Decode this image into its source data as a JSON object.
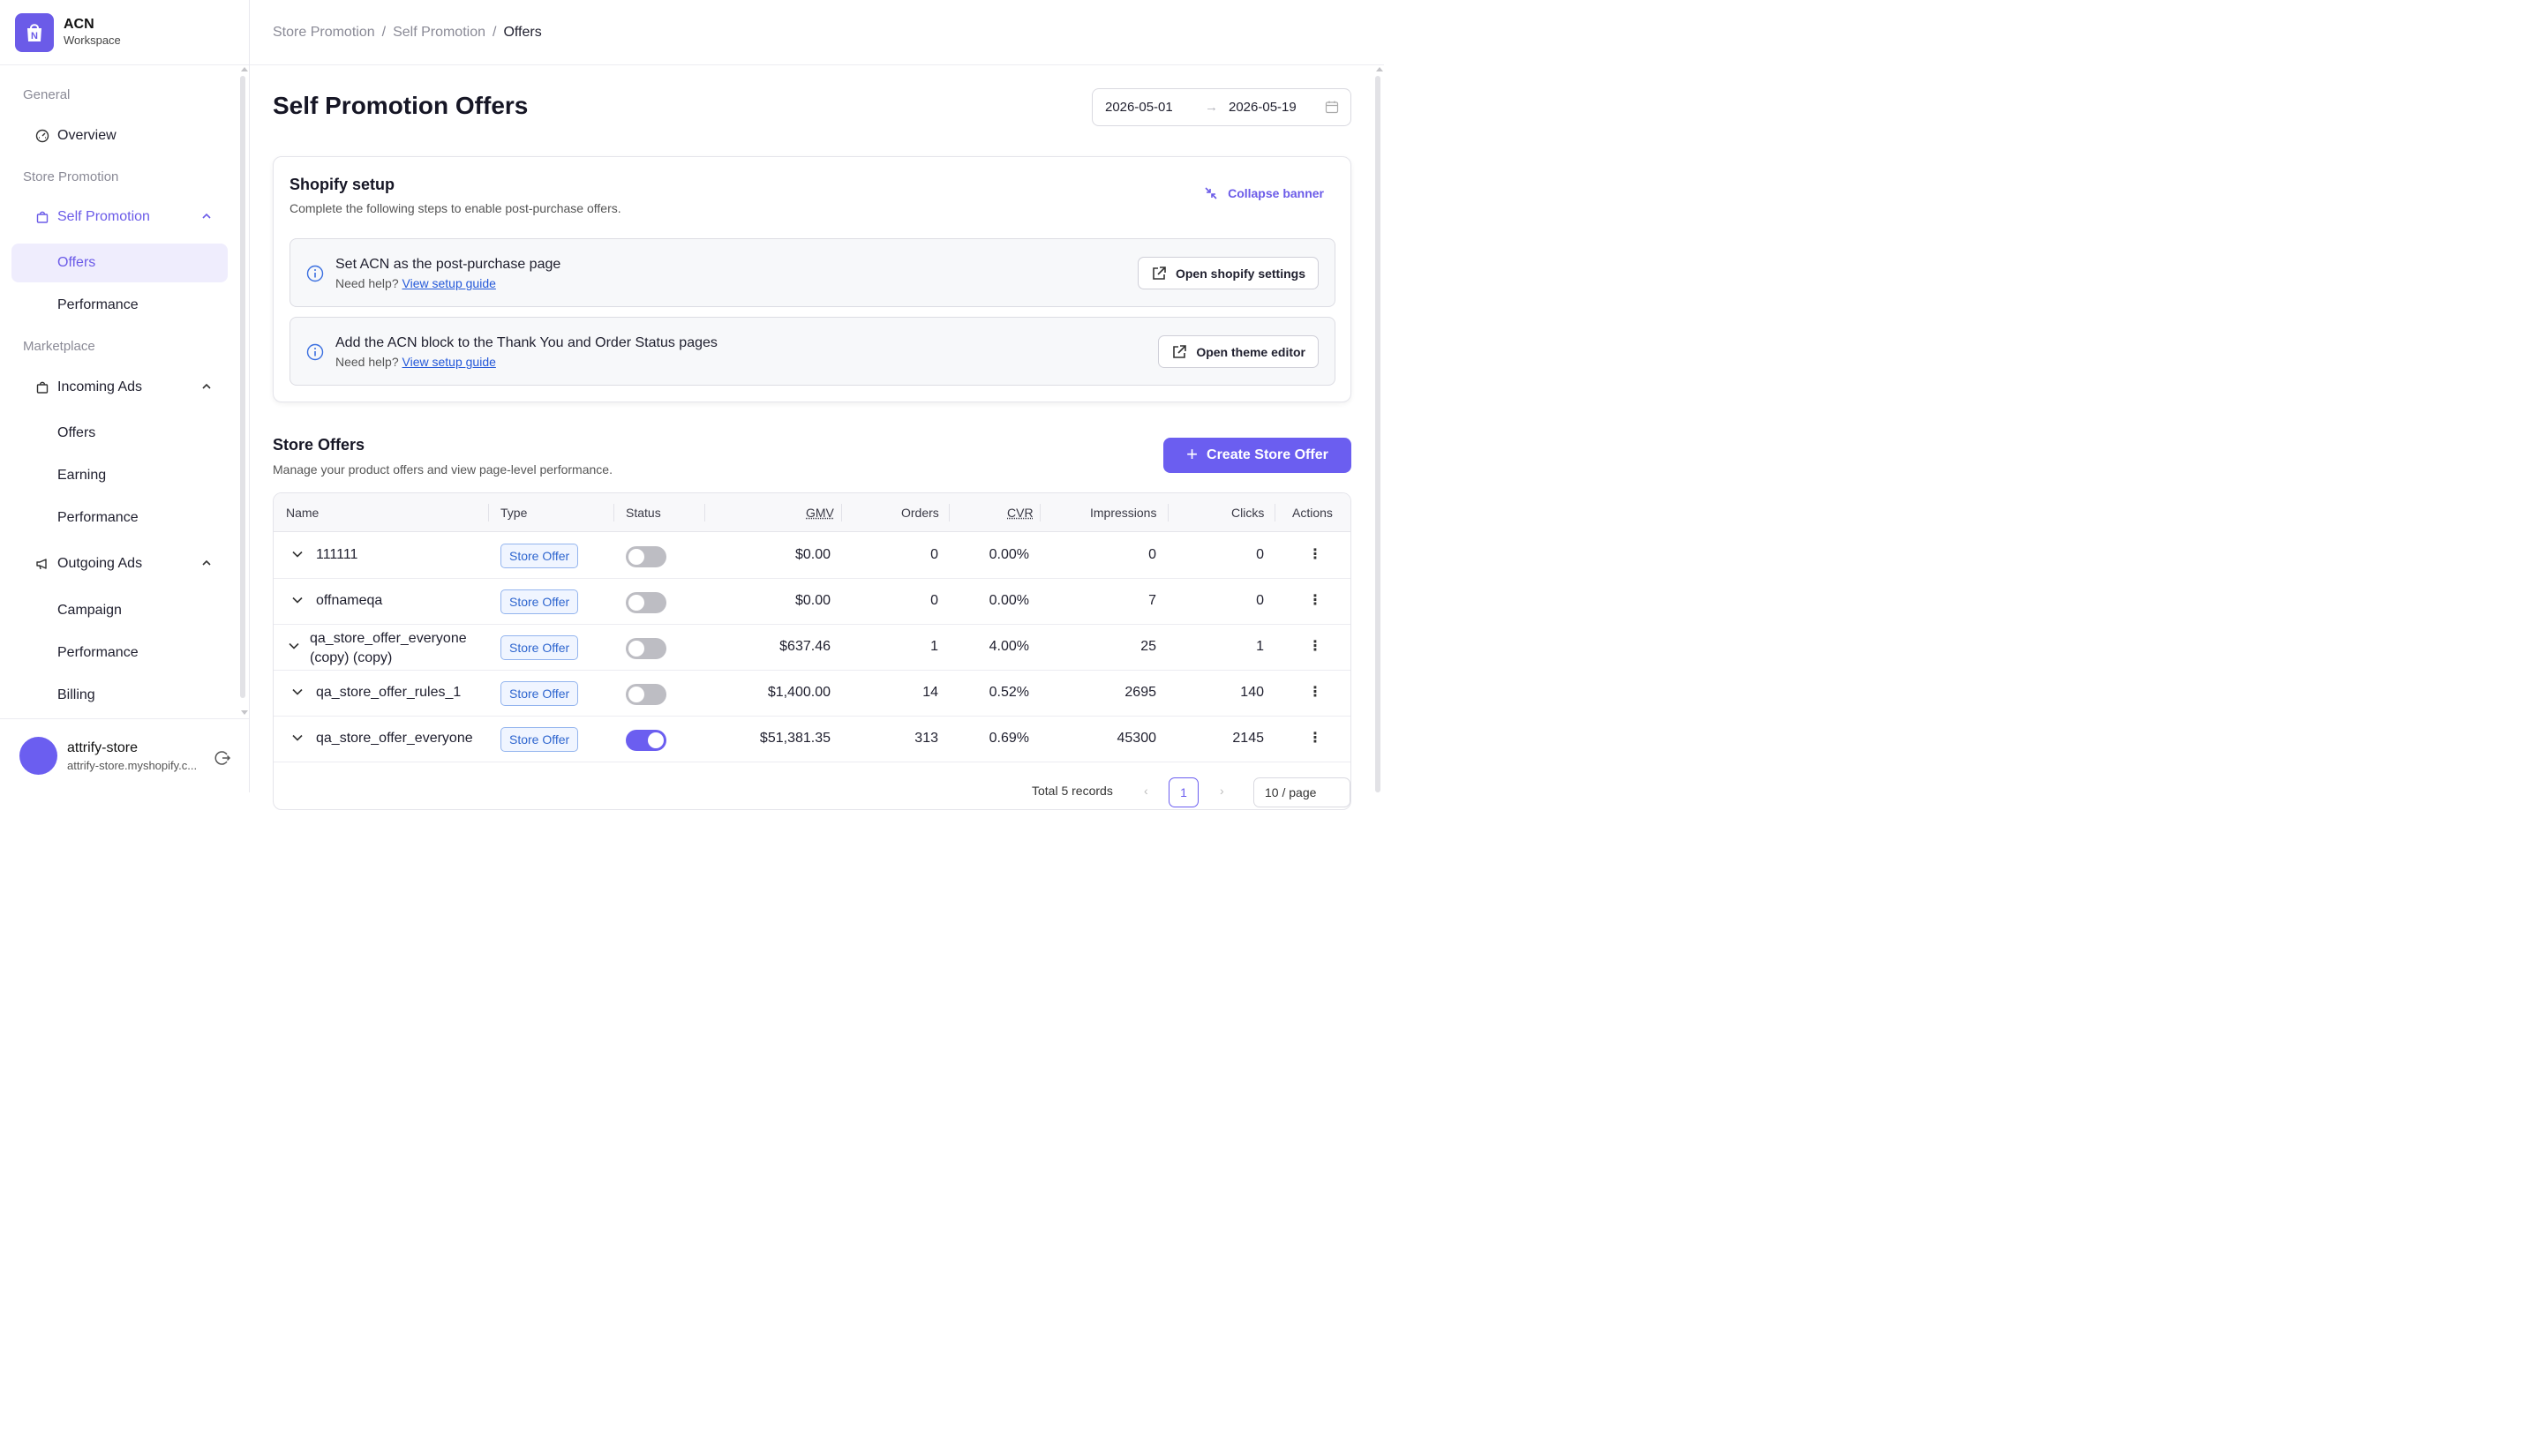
{
  "brand": {
    "title": "ACN",
    "subtitle": "Workspace",
    "accent": "#6b5be8"
  },
  "sidebar": {
    "sections": [
      "General",
      "Store Promotion",
      "Marketplace"
    ],
    "overview": "Overview",
    "self_promotion": {
      "label": "Self Promotion",
      "children": [
        "Offers",
        "Performance"
      ]
    },
    "incoming_ads": {
      "label": "Incoming Ads",
      "children": [
        "Offers",
        "Earning",
        "Performance"
      ]
    },
    "outgoing_ads": {
      "label": "Outgoing Ads",
      "children": [
        "Campaign",
        "Performance",
        "Billing"
      ]
    }
  },
  "user": {
    "name": "attrify-store",
    "domain": "attrify-store.myshopify.c..."
  },
  "breadcrumb": {
    "items": [
      "Store Promotion",
      "Self Promotion"
    ],
    "current": "Offers",
    "separator": "/"
  },
  "page": {
    "title": "Self Promotion Offers"
  },
  "date_range": {
    "start": "2026-05-01",
    "end": "2026-05-19",
    "arrow": "→"
  },
  "setup_banner": {
    "title": "Shopify setup",
    "subtitle": "Complete the following steps to enable post-purchase offers.",
    "collapse_label": "Collapse banner",
    "steps": [
      {
        "title": "Set ACN as the post-purchase page",
        "help_prefix": "Need help?",
        "help_link": "View setup guide",
        "button": "Open shopify settings"
      },
      {
        "title": "Add the ACN block to the Thank You and Order Status pages",
        "help_prefix": "Need help?",
        "help_link": "View setup guide",
        "button": "Open theme editor"
      }
    ]
  },
  "store_offers": {
    "title": "Store Offers",
    "subtitle": "Manage your product offers and view page-level performance.",
    "create_button": "Create Store Offer",
    "plus": "+",
    "columns": [
      "Name",
      "Type",
      "Status",
      "GMV",
      "Orders",
      "CVR",
      "Impressions",
      "Clicks",
      "Actions"
    ],
    "rows": [
      {
        "name": "111111",
        "type": "Store Offer",
        "status_on": false,
        "gmv": "$0.00",
        "orders": "0",
        "cvr": "0.00%",
        "impressions": "0",
        "clicks": "0"
      },
      {
        "name": "offnameqa",
        "type": "Store Offer",
        "status_on": false,
        "gmv": "$0.00",
        "orders": "0",
        "cvr": "0.00%",
        "impressions": "7",
        "clicks": "0"
      },
      {
        "name_line1": "qa_store_offer_everyone",
        "name_line2": "(copy) (copy)",
        "type": "Store Offer",
        "status_on": false,
        "gmv": "$637.46",
        "orders": "1",
        "cvr": "4.00%",
        "impressions": "25",
        "clicks": "1"
      },
      {
        "name": "qa_store_offer_rules_1",
        "type": "Store Offer",
        "status_on": false,
        "gmv": "$1,400.00",
        "orders": "14",
        "cvr": "0.52%",
        "impressions": "2695",
        "clicks": "140"
      },
      {
        "name": "qa_store_offer_everyone",
        "type": "Store Offer",
        "status_on": true,
        "gmv": "$51,381.35",
        "orders": "313",
        "cvr": "0.69%",
        "impressions": "45300",
        "clicks": "2145"
      }
    ],
    "pagination": {
      "total": "Total 5 records",
      "prev": "‹",
      "page": "1",
      "next": "›",
      "page_size": "10 / page"
    }
  }
}
